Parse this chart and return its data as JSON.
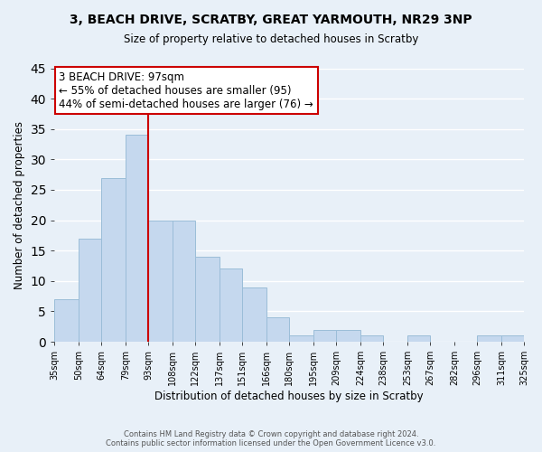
{
  "title": "3, BEACH DRIVE, SCRATBY, GREAT YARMOUTH, NR29 3NP",
  "subtitle": "Size of property relative to detached houses in Scratby",
  "xlabel": "Distribution of detached houses by size in Scratby",
  "ylabel": "Number of detached properties",
  "bar_color": "#c5d8ee",
  "bar_edge_color": "#9bbdd8",
  "bins": [
    35,
    50,
    64,
    79,
    93,
    108,
    122,
    137,
    151,
    166,
    180,
    195,
    209,
    224,
    238,
    253,
    267,
    282,
    296,
    311,
    325
  ],
  "counts": [
    7,
    17,
    27,
    34,
    20,
    20,
    14,
    12,
    9,
    4,
    1,
    2,
    2,
    1,
    0,
    1,
    0,
    0,
    1,
    1
  ],
  "tick_labels": [
    "35sqm",
    "50sqm",
    "64sqm",
    "79sqm",
    "93sqm",
    "108sqm",
    "122sqm",
    "137sqm",
    "151sqm",
    "166sqm",
    "180sqm",
    "195sqm",
    "209sqm",
    "224sqm",
    "238sqm",
    "253sqm",
    "267sqm",
    "282sqm",
    "296sqm",
    "311sqm",
    "325sqm"
  ],
  "ylim": [
    0,
    45
  ],
  "yticks": [
    0,
    5,
    10,
    15,
    20,
    25,
    30,
    35,
    40,
    45
  ],
  "red_line_x": 93,
  "annotation_line1": "3 BEACH DRIVE: 97sqm",
  "annotation_line2": "← 55% of detached houses are smaller (95)",
  "annotation_line3": "44% of semi-detached houses are larger (76) →",
  "footer_line1": "Contains HM Land Registry data © Crown copyright and database right 2024.",
  "footer_line2": "Contains public sector information licensed under the Open Government Licence v3.0.",
  "background_color": "#e8f0f8",
  "grid_color": "#ffffff",
  "annotation_box_facecolor": "#ffffff",
  "annotation_box_edgecolor": "#cc0000",
  "red_line_color": "#cc0000"
}
